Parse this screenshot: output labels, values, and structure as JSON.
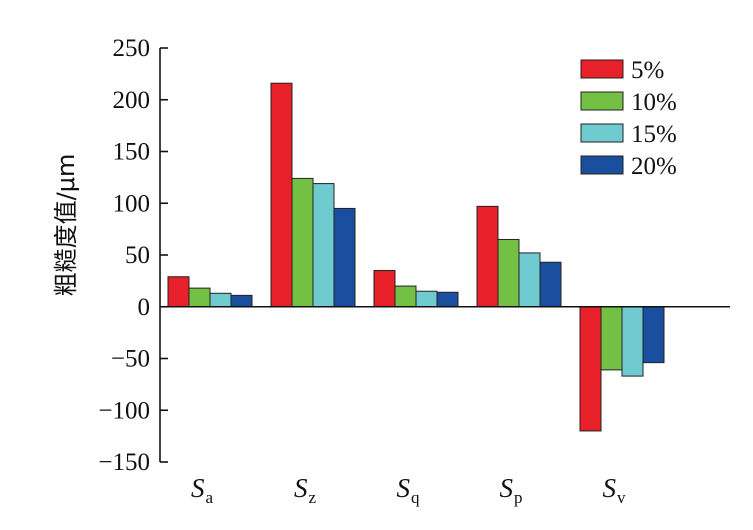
{
  "chart_data": {
    "type": "bar",
    "ylabel": "粗糙度值/μm",
    "ylim": [
      -150,
      250
    ],
    "yticks": [
      250,
      200,
      150,
      100,
      50,
      0,
      -50,
      -100,
      -150
    ],
    "ytick_labels": [
      "250",
      "200",
      "150",
      "100",
      "50",
      "0",
      "−50",
      "−100",
      "−150"
    ],
    "categories": [
      {
        "main": "S",
        "sub": "a"
      },
      {
        "main": "S",
        "sub": "z"
      },
      {
        "main": "S",
        "sub": "q"
      },
      {
        "main": "S",
        "sub": "p"
      },
      {
        "main": "S",
        "sub": "v"
      }
    ],
    "series": [
      {
        "name": "5%",
        "color": "#e8202a",
        "values": [
          29,
          216,
          35,
          97,
          -120
        ]
      },
      {
        "name": "10%",
        "color": "#74c044",
        "values": [
          18,
          124,
          20,
          65,
          -61
        ]
      },
      {
        "name": "15%",
        "color": "#6fcbd0",
        "values": [
          13,
          119,
          15,
          52,
          -67
        ]
      },
      {
        "name": "20%",
        "color": "#1a4e9e",
        "values": [
          11,
          95,
          14,
          43,
          -54
        ]
      }
    ],
    "legend_position": "top-right",
    "grid": false
  }
}
